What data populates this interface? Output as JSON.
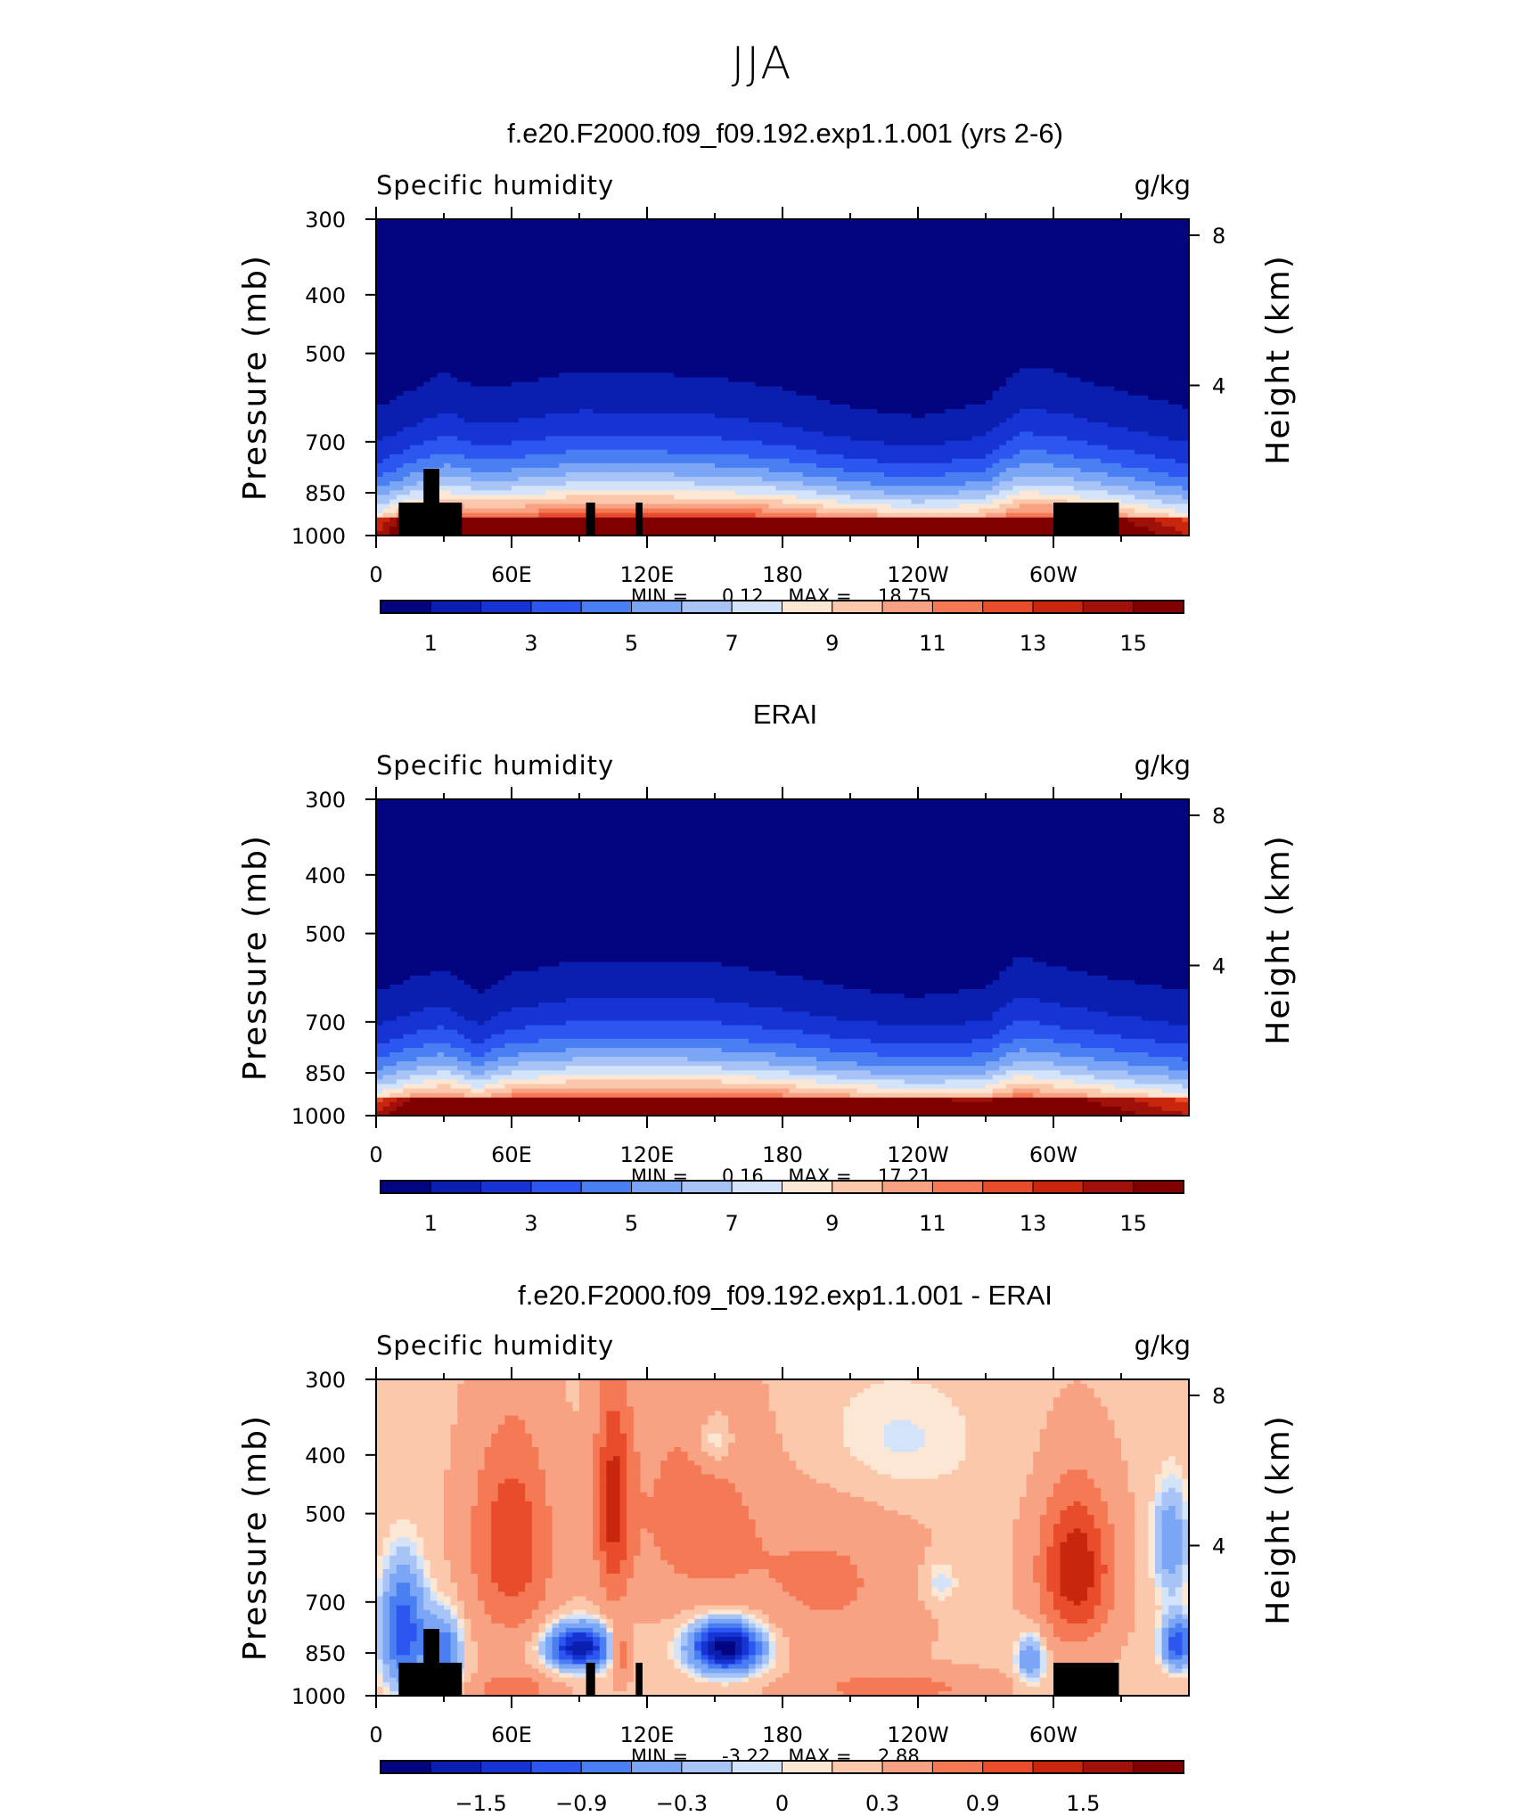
{
  "main_title": "JJA",
  "panels": [
    {
      "title": "f.e20.F2000.f09_f09.192.exp1.1.001 (yrs 2-6)",
      "left_label": "Specific humidity",
      "right_label": "g/kg",
      "min_label": "MIN =",
      "min_value": "0.12",
      "max_label": "MAX =",
      "max_value": "18.75",
      "colorbar_ticks": [
        "1",
        "3",
        "5",
        "7",
        "9",
        "11",
        "13",
        "15"
      ]
    },
    {
      "title": "ERAI",
      "left_label": "Specific humidity",
      "right_label": "g/kg",
      "min_label": "MIN =",
      "min_value": "0.16",
      "max_label": "MAX =",
      "max_value": "17.21",
      "colorbar_ticks": [
        "1",
        "3",
        "5",
        "7",
        "9",
        "11",
        "13",
        "15"
      ]
    },
    {
      "title": "f.e20.F2000.f09_f09.192.exp1.1.001 - ERAI",
      "left_label": "Specific humidity",
      "right_label": "g/kg",
      "min_label": "MIN =",
      "min_value": "-3.22",
      "max_label": "MAX =",
      "max_value": "2.88",
      "colorbar_ticks": [
        "-1.5",
        "-0.9",
        "-0.3",
        "0",
        "0.3",
        "0.9",
        "1.5"
      ]
    }
  ],
  "chart_data": [
    {
      "type": "heatmap",
      "title": "f.e20.F2000.f09_f09.192.exp1.1.001 (yrs 2-6)",
      "xlabel": "",
      "ylabel": "Pressure (mb)",
      "y2label": "Height (km)",
      "x_ticks": [
        "0",
        "60E",
        "120E",
        "180",
        "120W",
        "60W"
      ],
      "xlim": [
        0,
        360
      ],
      "y_ticks": [
        "300",
        "400",
        "500",
        "700",
        "850",
        "1000"
      ],
      "ylim": [
        1000,
        300
      ],
      "y_scale": "log",
      "y2_ticks": [
        "4",
        "8"
      ],
      "units": "g/kg",
      "levels": [
        1,
        2,
        3,
        4,
        5,
        6,
        7,
        8,
        9,
        10,
        11,
        12,
        13,
        14,
        15
      ],
      "colors": [
        "#03047f",
        "#0a1fb0",
        "#1634d4",
        "#2c56ef",
        "#4a7ff3",
        "#7aa6f5",
        "#a8c4f7",
        "#d2e3fa",
        "#fbe7d4",
        "#fbc8ac",
        "#f8a283",
        "#f47954",
        "#e94c2a",
        "#c8270e",
        "#a0110a",
        "#800000"
      ],
      "min": 0.12,
      "max": 18.75,
      "missing_blocks_lon": [
        [
          10,
          38
        ],
        [
          93,
          97
        ],
        [
          115,
          118
        ],
        [
          300,
          329
        ]
      ],
      "profile": [
        {
          "lon": 0,
          "sfc": 12.5,
          "scale": 0.74
        },
        {
          "lon": 15,
          "sfc": 16,
          "scale": 0.76
        },
        {
          "lon": 30,
          "sfc": 17,
          "scale": 0.85
        },
        {
          "lon": 45,
          "sfc": 17.5,
          "scale": 0.75
        },
        {
          "lon": 60,
          "sfc": 17,
          "scale": 0.78
        },
        {
          "lon": 90,
          "sfc": 18,
          "scale": 0.83
        },
        {
          "lon": 120,
          "sfc": 18,
          "scale": 0.82
        },
        {
          "lon": 150,
          "sfc": 18,
          "scale": 0.8
        },
        {
          "lon": 180,
          "sfc": 17.5,
          "scale": 0.75
        },
        {
          "lon": 210,
          "sfc": 16,
          "scale": 0.68
        },
        {
          "lon": 240,
          "sfc": 15,
          "scale": 0.64
        },
        {
          "lon": 270,
          "sfc": 15,
          "scale": 0.72
        },
        {
          "lon": 285,
          "sfc": 16.5,
          "scale": 0.88
        },
        {
          "lon": 300,
          "sfc": 16.5,
          "scale": 0.86
        },
        {
          "lon": 330,
          "sfc": 15,
          "scale": 0.78
        },
        {
          "lon": 360,
          "sfc": 12.5,
          "scale": 0.74
        }
      ]
    },
    {
      "type": "heatmap",
      "title": "ERAI",
      "xlabel": "",
      "ylabel": "Pressure (mb)",
      "y2label": "Height (km)",
      "x_ticks": [
        "0",
        "60E",
        "120E",
        "180",
        "120W",
        "60W"
      ],
      "xlim": [
        0,
        360
      ],
      "y_ticks": [
        "300",
        "400",
        "500",
        "700",
        "850",
        "1000"
      ],
      "ylim": [
        1000,
        300
      ],
      "y_scale": "log",
      "y2_ticks": [
        "4",
        "8"
      ],
      "units": "g/kg",
      "levels": [
        1,
        2,
        3,
        4,
        5,
        6,
        7,
        8,
        9,
        10,
        11,
        12,
        13,
        14,
        15
      ],
      "colors": [
        "#03047f",
        "#0a1fb0",
        "#1634d4",
        "#2c56ef",
        "#4a7ff3",
        "#7aa6f5",
        "#a8c4f7",
        "#d2e3fa",
        "#fbe7d4",
        "#fbc8ac",
        "#f8a283",
        "#f47954",
        "#e94c2a",
        "#c8270e",
        "#a0110a",
        "#800000"
      ],
      "min": 0.16,
      "max": 17.21,
      "missing_blocks_lon": [],
      "profile": [
        {
          "lon": 0,
          "sfc": 12.5,
          "scale": 0.72
        },
        {
          "lon": 15,
          "sfc": 15,
          "scale": 0.74
        },
        {
          "lon": 30,
          "sfc": 16,
          "scale": 0.78
        },
        {
          "lon": 45,
          "sfc": 15,
          "scale": 0.66
        },
        {
          "lon": 60,
          "sfc": 16.5,
          "scale": 0.74
        },
        {
          "lon": 90,
          "sfc": 17,
          "scale": 0.8
        },
        {
          "lon": 120,
          "sfc": 17,
          "scale": 0.8
        },
        {
          "lon": 150,
          "sfc": 17,
          "scale": 0.79
        },
        {
          "lon": 180,
          "sfc": 16.5,
          "scale": 0.74
        },
        {
          "lon": 210,
          "sfc": 15.5,
          "scale": 0.68
        },
        {
          "lon": 240,
          "sfc": 15,
          "scale": 0.64
        },
        {
          "lon": 270,
          "sfc": 14.5,
          "scale": 0.7
        },
        {
          "lon": 285,
          "sfc": 16,
          "scale": 0.84
        },
        {
          "lon": 300,
          "sfc": 15.5,
          "scale": 0.8
        },
        {
          "lon": 330,
          "sfc": 14,
          "scale": 0.75
        },
        {
          "lon": 360,
          "sfc": 12.5,
          "scale": 0.72
        }
      ]
    },
    {
      "type": "heatmap",
      "title": "f.e20.F2000.f09_f09.192.exp1.1.001 - ERAI",
      "xlabel": "",
      "ylabel": "Pressure (mb)",
      "y2label": "Height (km)",
      "x_ticks": [
        "0",
        "60E",
        "120E",
        "180",
        "120W",
        "60W"
      ],
      "xlim": [
        0,
        360
      ],
      "y_ticks": [
        "300",
        "400",
        "500",
        "700",
        "850",
        "1000"
      ],
      "ylim": [
        1000,
        300
      ],
      "y_scale": "log",
      "y2_ticks": [
        "4",
        "8"
      ],
      "units": "g/kg",
      "levels": [
        -1.8,
        -1.5,
        -1.2,
        -0.9,
        -0.6,
        -0.3,
        -0.1,
        0,
        0.1,
        0.3,
        0.6,
        0.9,
        1.2,
        1.5,
        1.8
      ],
      "colors": [
        "#03047f",
        "#0a1fb0",
        "#1634d4",
        "#2c56ef",
        "#4a7ff3",
        "#7aa6f5",
        "#a8c4f7",
        "#d2e3fa",
        "#fbe7d4",
        "#fbc8ac",
        "#f8a283",
        "#f47954",
        "#e94c2a",
        "#c8270e",
        "#a0110a",
        "#800000"
      ],
      "min": -3.22,
      "max": 2.88,
      "missing_blocks_lon": [
        [
          10,
          38
        ],
        [
          93,
          97
        ],
        [
          115,
          118
        ],
        [
          300,
          329
        ]
      ],
      "anomalies": [
        {
          "lon": 12,
          "p": 780,
          "amp": -1.4,
          "wlon": 10,
          "wp": 180
        },
        {
          "lon": 30,
          "p": 850,
          "amp": -1.1,
          "wlon": 8,
          "wp": 120
        },
        {
          "lon": 60,
          "p": 560,
          "amp": 0.9,
          "wlon": 18,
          "wp": 220
        },
        {
          "lon": 60,
          "p": 980,
          "amp": 0.6,
          "wlon": 18,
          "wp": 60
        },
        {
          "lon": 90,
          "p": 830,
          "amp": -2.0,
          "wlon": 14,
          "wp": 70
        },
        {
          "lon": 105,
          "p": 480,
          "amp": 1.0,
          "wlon": 8,
          "wp": 200
        },
        {
          "lon": 108,
          "p": 850,
          "amp": 0.8,
          "wlon": 4,
          "wp": 80
        },
        {
          "lon": 155,
          "p": 830,
          "amp": -2.3,
          "wlon": 16,
          "wp": 80
        },
        {
          "lon": 140,
          "p": 500,
          "amp": 0.5,
          "wlon": 30,
          "wp": 200
        },
        {
          "lon": 150,
          "p": 380,
          "amp": -0.5,
          "wlon": 8,
          "wp": 40
        },
        {
          "lon": 230,
          "p": 380,
          "amp": -0.3,
          "wlon": 40,
          "wp": 100
        },
        {
          "lon": 250,
          "p": 650,
          "amp": -0.4,
          "wlon": 8,
          "wp": 60
        },
        {
          "lon": 200,
          "p": 650,
          "amp": 0.4,
          "wlon": 40,
          "wp": 200
        },
        {
          "lon": 230,
          "p": 970,
          "amp": 0.5,
          "wlon": 40,
          "wp": 60
        },
        {
          "lon": 310,
          "p": 620,
          "amp": 1.2,
          "wlon": 16,
          "wp": 180
        },
        {
          "lon": 290,
          "p": 870,
          "amp": -0.9,
          "wlon": 6,
          "wp": 80
        },
        {
          "lon": 352,
          "p": 560,
          "amp": -0.8,
          "wlon": 8,
          "wp": 120
        },
        {
          "lon": 355,
          "p": 820,
          "amp": -1.4,
          "wlon": 7,
          "wp": 80
        }
      ]
    }
  ]
}
